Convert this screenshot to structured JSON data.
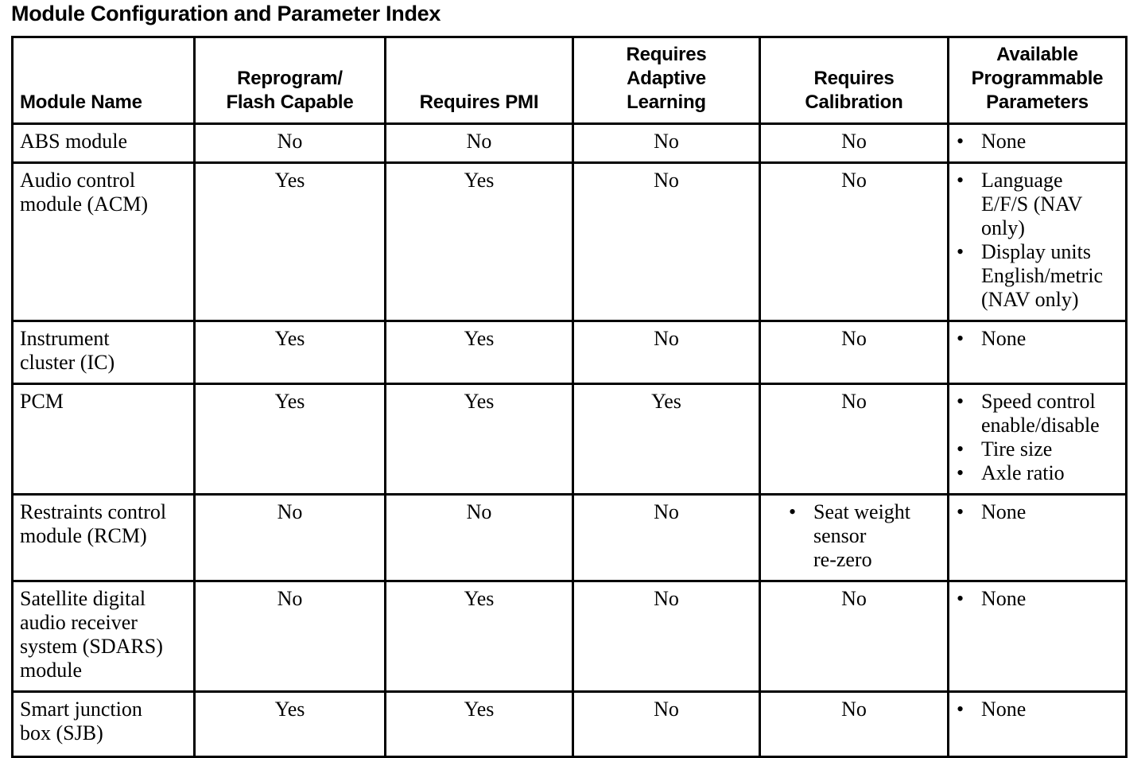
{
  "title": "Module Configuration and Parameter Index",
  "bullet_char": "•",
  "colors": {
    "text": "#000000",
    "border": "#000000",
    "background": "#ffffff"
  },
  "table": {
    "columns": [
      {
        "label": "Module Name"
      },
      {
        "label": "Reprogram/\nFlash Capable"
      },
      {
        "label": "Requires PMI"
      },
      {
        "label": "Requires\nAdaptive\nLearning"
      },
      {
        "label": "Requires\nCalibration"
      },
      {
        "label": "Available\nProgrammable\nParameters"
      }
    ],
    "rows": [
      {
        "module": "ABS module",
        "reprogram": "No",
        "pmi": "No",
        "adaptive": "No",
        "calibration": "No",
        "parameters": [
          "None"
        ]
      },
      {
        "module": "Audio control\nmodule (ACM)",
        "reprogram": "Yes",
        "pmi": "Yes",
        "adaptive": "No",
        "calibration": "No",
        "parameters": [
          "Language\nE/F/S (NAV\nonly)",
          "Display units\nEnglish/metric\n(NAV only)"
        ]
      },
      {
        "module": "Instrument\ncluster (IC)",
        "reprogram": "Yes",
        "pmi": "Yes",
        "adaptive": "No",
        "calibration": "No",
        "parameters": [
          "None"
        ]
      },
      {
        "module": "PCM",
        "reprogram": "Yes",
        "pmi": "Yes",
        "adaptive": "Yes",
        "calibration": "No",
        "parameters": [
          "Speed control\nenable/disable",
          "Tire size",
          "Axle ratio"
        ]
      },
      {
        "module": "Restraints control\nmodule (RCM)",
        "reprogram": "No",
        "pmi": "No",
        "adaptive": "No",
        "calibration": [
          "Seat weight\nsensor\nre-zero"
        ],
        "parameters": [
          "None"
        ]
      },
      {
        "module": "Satellite digital\naudio receiver\nsystem (SDARS)\nmodule",
        "reprogram": "No",
        "pmi": "Yes",
        "adaptive": "No",
        "calibration": "No",
        "parameters": [
          "None"
        ]
      },
      {
        "module": "Smart junction\nbox (SJB)",
        "reprogram": "Yes",
        "pmi": "Yes",
        "adaptive": "No",
        "calibration": "No",
        "parameters": [
          "None"
        ]
      }
    ]
  }
}
